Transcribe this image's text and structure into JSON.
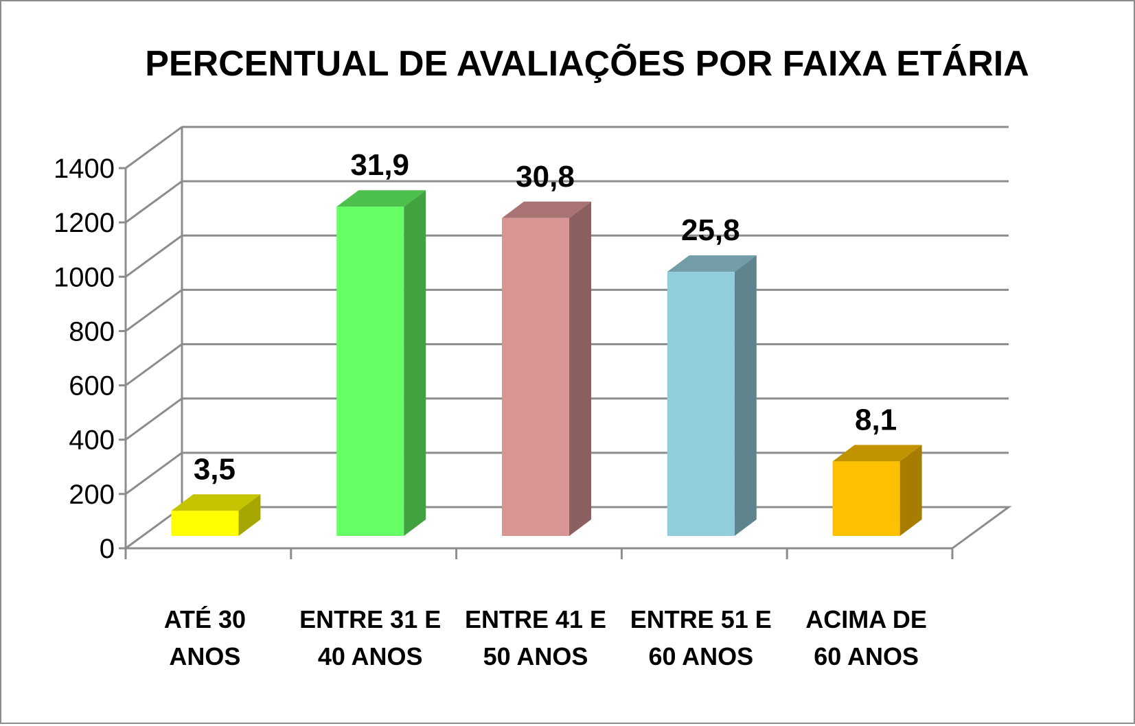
{
  "chart_data": {
    "type": "bar",
    "title": "PERCENTUAL DE AVALIAÇÕES POR FAIXA ETÁRIA",
    "xlabel": "",
    "ylabel": "",
    "ylim": [
      0,
      1400
    ],
    "yticks": [
      0,
      200,
      400,
      600,
      800,
      1000,
      1200,
      1400
    ],
    "ytick_labels": [
      "0",
      "200",
      "400",
      "600",
      "800",
      "1000",
      "1200",
      "1400"
    ],
    "grid": true,
    "legend": "none",
    "categories": [
      [
        "ATÉ 30",
        "ANOS"
      ],
      [
        "ENTRE 31 E",
        "40 ANOS"
      ],
      [
        "ENTRE 41 E",
        "50 ANOS"
      ],
      [
        "ENTRE 51 E",
        "60 ANOS"
      ],
      [
        "ACIMA DE",
        "60 ANOS"
      ]
    ],
    "values": [
      138,
      1258,
      1216,
      1018,
      320
    ],
    "data_labels": [
      "3,5",
      "31,9",
      "30,8",
      "25,8",
      "8,1"
    ],
    "colors": [
      {
        "front": "#ffff00",
        "side": "#a6a600",
        "top": "#c4c400"
      },
      {
        "front": "#66ff66",
        "side": "#40a340",
        "top": "#4cbf4c"
      },
      {
        "front": "#d99594",
        "side": "#8c6060",
        "top": "#a87372"
      },
      {
        "front": "#92cddc",
        "side": "#5f848e",
        "top": "#719ca8"
      },
      {
        "front": "#ffc000",
        "side": "#a67d00",
        "top": "#c29300"
      }
    ]
  }
}
